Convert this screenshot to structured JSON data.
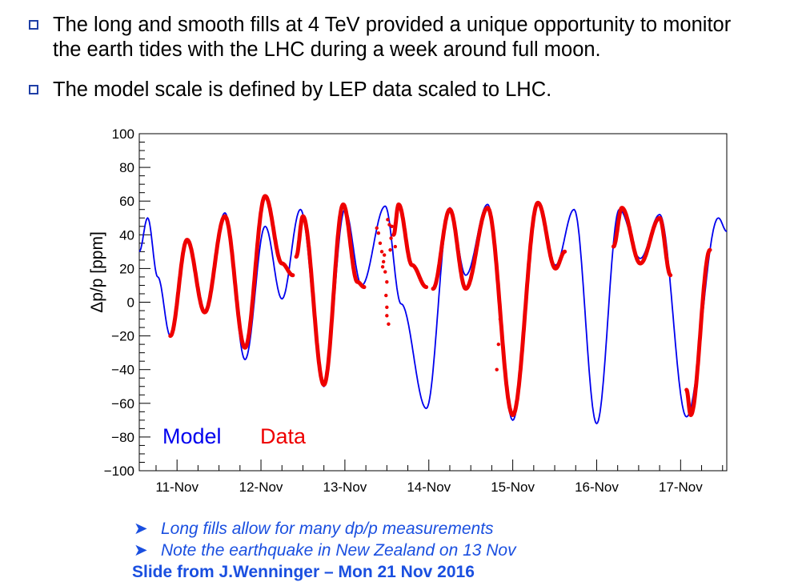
{
  "bullets": [
    "The long and smooth fills at 4 TeV provided a unique opportunity to monitor the earth tides with the LHC during a week around full moon.",
    "The model scale is defined by LEP data scaled to LHC."
  ],
  "notes": [
    "Long fills allow for many dp/p measurements",
    "Note the earthquake in New Zealand on 13 Nov"
  ],
  "credit": "Slide from J.Wenninger – Mon 21 Nov 2016",
  "chart_data": {
    "type": "line",
    "ylabel": "Δp/p [ppm]",
    "xlabel": "",
    "ylim": [
      -100,
      100
    ],
    "xlim": [
      10.55,
      17.55
    ],
    "x_tick_labels": [
      "11-Nov",
      "12-Nov",
      "13-Nov",
      "14-Nov",
      "15-Nov",
      "16-Nov",
      "17-Nov"
    ],
    "x_tick_values": [
      11,
      12,
      13,
      14,
      15,
      16,
      17
    ],
    "y_tick_labels": [
      "100",
      "80",
      "60",
      "40",
      "20",
      "0",
      "−20",
      "−40",
      "−60",
      "−80",
      "−100"
    ],
    "y_tick_values": [
      100,
      80,
      60,
      40,
      20,
      0,
      -20,
      -40,
      -60,
      -80,
      -100
    ],
    "grid": false,
    "legend": [
      "Model",
      "Data"
    ],
    "colors": {
      "model": "#0000ee",
      "data": "#ee0000"
    },
    "series": [
      {
        "name": "Model",
        "points": [
          [
            10.55,
            30
          ],
          [
            10.65,
            50
          ],
          [
            10.77,
            15
          ],
          [
            10.92,
            -20
          ],
          [
            11.12,
            37
          ],
          [
            11.33,
            -6
          ],
          [
            11.57,
            53
          ],
          [
            11.81,
            -34
          ],
          [
            12.05,
            45
          ],
          [
            12.25,
            2
          ],
          [
            12.47,
            55
          ],
          [
            12.75,
            -50
          ],
          [
            13.0,
            55
          ],
          [
            13.2,
            10
          ],
          [
            13.48,
            57
          ],
          [
            13.67,
            -1
          ],
          [
            13.97,
            -63
          ],
          [
            14.25,
            56
          ],
          [
            14.44,
            16
          ],
          [
            14.7,
            58
          ],
          [
            15.0,
            -70
          ],
          [
            15.3,
            58
          ],
          [
            15.51,
            22
          ],
          [
            15.73,
            55
          ],
          [
            16.0,
            -72
          ],
          [
            16.27,
            55
          ],
          [
            16.52,
            26
          ],
          [
            16.75,
            52
          ],
          [
            17.07,
            -68
          ],
          [
            17.45,
            50
          ],
          [
            17.55,
            42
          ]
        ]
      },
      {
        "name": "Data",
        "segments": [
          [
            [
              10.92,
              -20
            ],
            [
              11.12,
              37
            ],
            [
              11.33,
              -6
            ],
            [
              11.57,
              51
            ],
            [
              11.81,
              -27
            ],
            [
              12.05,
              63
            ],
            [
              12.25,
              23
            ],
            [
              12.38,
              16
            ]
          ],
          [
            [
              12.42,
              27
            ],
            [
              12.5,
              51
            ],
            [
              12.75,
              -49
            ],
            [
              12.98,
              58
            ],
            [
              13.15,
              12
            ],
            [
              13.23,
              9
            ]
          ],
          [
            [
              13.58,
              40
            ],
            [
              13.64,
              58
            ],
            [
              13.8,
              22
            ],
            [
              13.97,
              9
            ]
          ],
          [
            [
              14.05,
              8
            ],
            [
              14.25,
              55
            ],
            [
              14.44,
              8
            ],
            [
              14.7,
              56
            ],
            [
              15.0,
              -67
            ],
            [
              15.3,
              59
            ],
            [
              15.51,
              20
            ],
            [
              15.62,
              30
            ]
          ],
          [
            [
              16.2,
              33
            ],
            [
              16.3,
              56
            ],
            [
              16.52,
              23
            ],
            [
              16.75,
              50
            ],
            [
              16.88,
              16
            ]
          ],
          [
            [
              17.07,
              -52
            ],
            [
              17.12,
              -67
            ],
            [
              17.35,
              31
            ]
          ]
        ],
        "scatter": [
          [
            13.38,
            44
          ],
          [
            13.4,
            41
          ],
          [
            13.42,
            35
          ],
          [
            13.44,
            30
          ],
          [
            13.46,
            24
          ],
          [
            13.48,
            18
          ],
          [
            13.5,
            12
          ],
          [
            13.49,
            4
          ],
          [
            13.5,
            -3
          ],
          [
            13.5,
            -8
          ],
          [
            13.52,
            -13
          ],
          [
            13.51,
            49
          ],
          [
            13.53,
            46
          ],
          [
            13.55,
            38
          ],
          [
            13.47,
            28
          ],
          [
            13.45,
            21
          ],
          [
            13.56,
            45
          ],
          [
            13.54,
            31
          ],
          [
            13.6,
            33
          ],
          [
            14.83,
            -25
          ],
          [
            14.85,
            -10
          ],
          [
            14.81,
            -40
          ]
        ]
      }
    ],
    "annotations": [
      {
        "text": "Model",
        "color": "#0000ee"
      },
      {
        "text": "Data",
        "color": "#ee0000"
      }
    ]
  }
}
